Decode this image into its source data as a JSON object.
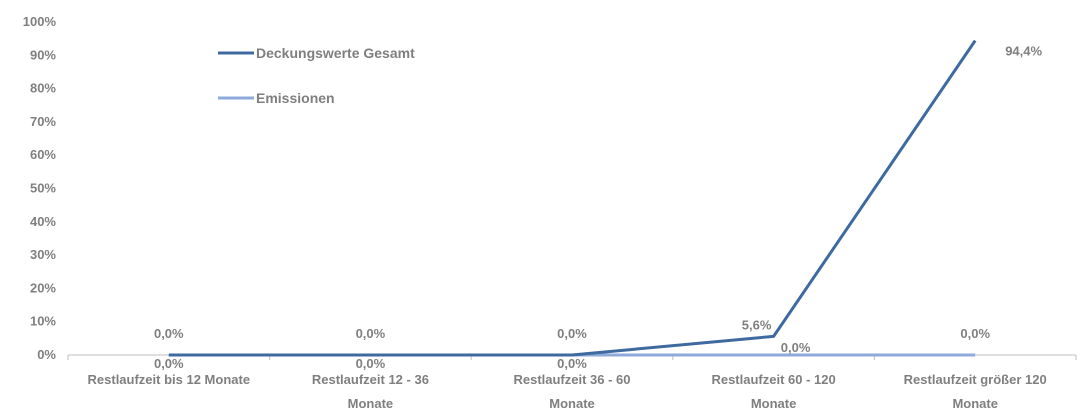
{
  "chart_data": {
    "type": "line",
    "categories": [
      [
        "Restlaufzeit bis 12 Monate"
      ],
      [
        "Restlaufzeit 12 - 36",
        "Monate"
      ],
      [
        "Restlaufzeit 36 - 60",
        "Monate"
      ],
      [
        "Restlaufzeit 60 - 120",
        "Monate"
      ],
      [
        "Restlaufzeit größer 120",
        "Monate"
      ]
    ],
    "series": [
      {
        "name": "Deckungswerte Gesamt",
        "values": [
          0.0,
          0.0,
          0.0,
          5.6,
          94.4
        ],
        "labels": [
          "0,0%",
          "0,0%",
          "0,0%",
          "5,6%",
          "94,4%"
        ],
        "color": "#3e6aa0"
      },
      {
        "name": "Emissionen",
        "values": [
          0.0,
          0.0,
          0.0,
          0.0,
          0.0
        ],
        "labels": [
          "0,0%",
          "0,0%",
          "0,0%",
          "0,0%",
          "0,0%"
        ],
        "color": "#8eaadb"
      }
    ],
    "y_ticks": [
      "0%",
      "10%",
      "20%",
      "30%",
      "40%",
      "50%",
      "60%",
      "70%",
      "80%",
      "90%",
      "100%"
    ],
    "ylim": [
      0,
      100
    ],
    "xlabel": "",
    "ylabel": "",
    "title": "",
    "grid": false,
    "legend_position": "top-left-inside"
  }
}
